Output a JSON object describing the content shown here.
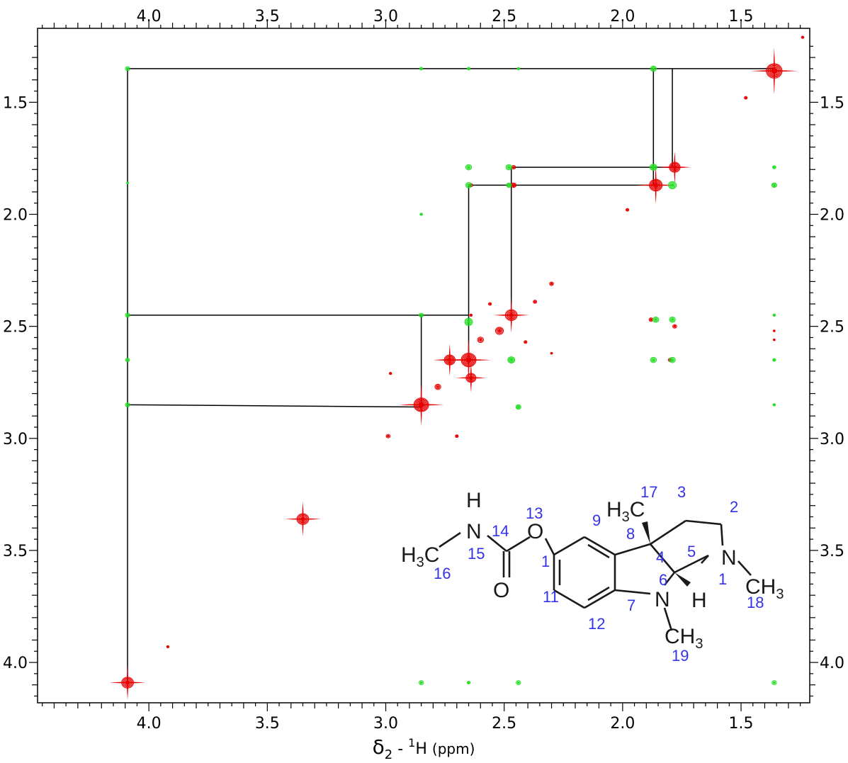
{
  "chart_data": {
    "type": "scatter",
    "title": "",
    "xlabel": "δ2 - 1H (ppm)",
    "xlabel_parts": {
      "delta": "δ",
      "sub": "2",
      "dash": " - ",
      "sup": "1",
      "nucleus": "H",
      "unit": "(ppm)"
    },
    "ylabel": "",
    "xlim": [
      4.47,
      1.21
    ],
    "ylim": [
      1.17,
      4.18
    ],
    "x_reversed": true,
    "y_reversed": true,
    "x_ticks": [
      4.0,
      3.5,
      3.0,
      2.5,
      2.0,
      1.5
    ],
    "x_tick_labels": [
      "4.0",
      "3.5",
      "3.0",
      "2.5",
      "2.0",
      "1.5"
    ],
    "y_ticks": [
      1.5,
      2.0,
      2.5,
      3.0,
      3.5,
      4.0
    ],
    "y_tick_labels": [
      "1.5",
      "2.0",
      "2.5",
      "3.0",
      "3.5",
      "4.0"
    ],
    "grid": false,
    "colors": {
      "positive": "#e60000",
      "negative": "#22dd22",
      "line": "#000000",
      "atom_number": "#3333e6"
    },
    "series": [
      {
        "color": "red",
        "points": [
          {
            "x": 1.36,
            "y": 1.36,
            "s": 3.2
          },
          {
            "x": 1.78,
            "y": 1.79,
            "s": 2.2
          },
          {
            "x": 1.86,
            "y": 1.87,
            "s": 2.6
          },
          {
            "x": 2.47,
            "y": 2.45,
            "s": 2.4
          },
          {
            "x": 2.52,
            "y": 2.52,
            "s": 1.6
          },
          {
            "x": 2.65,
            "y": 2.65,
            "s": 3.0
          },
          {
            "x": 2.73,
            "y": 2.65,
            "s": 2.2
          },
          {
            "x": 2.64,
            "y": 2.73,
            "s": 2.0
          },
          {
            "x": 2.78,
            "y": 2.77,
            "s": 1.2
          },
          {
            "x": 2.6,
            "y": 2.56,
            "s": 1.2
          },
          {
            "x": 2.85,
            "y": 2.85,
            "s": 3.0
          },
          {
            "x": 3.35,
            "y": 3.36,
            "s": 2.4
          },
          {
            "x": 4.09,
            "y": 4.09,
            "s": 2.4
          },
          {
            "x": 2.3,
            "y": 2.31,
            "s": 0.8
          },
          {
            "x": 2.37,
            "y": 2.39,
            "s": 0.7
          },
          {
            "x": 1.98,
            "y": 1.98,
            "s": 0.6
          },
          {
            "x": 1.48,
            "y": 1.48,
            "s": 0.6
          },
          {
            "x": 1.24,
            "y": 1.21,
            "s": 0.5
          },
          {
            "x": 2.99,
            "y": 2.99,
            "s": 0.8
          },
          {
            "x": 2.7,
            "y": 2.99,
            "s": 0.6
          },
          {
            "x": 2.98,
            "y": 2.71,
            "s": 0.5
          },
          {
            "x": 3.92,
            "y": 3.93,
            "s": 0.5
          },
          {
            "x": 2.3,
            "y": 2.62,
            "s": 0.4
          },
          {
            "x": 2.56,
            "y": 2.4,
            "s": 0.6
          },
          {
            "x": 2.41,
            "y": 2.57,
            "s": 0.6
          },
          {
            "x": 2.64,
            "y": 2.45,
            "s": 0.5
          },
          {
            "x": 2.46,
            "y": 1.87,
            "s": 1.0
          },
          {
            "x": 2.46,
            "y": 1.79,
            "s": 0.8
          },
          {
            "x": 2.64,
            "y": 1.87,
            "s": 0.7
          },
          {
            "x": 1.88,
            "y": 2.47,
            "s": 0.8
          },
          {
            "x": 1.78,
            "y": 2.5,
            "s": 0.8
          },
          {
            "x": 1.8,
            "y": 2.65,
            "s": 0.7
          },
          {
            "x": 1.36,
            "y": 2.52,
            "s": 0.4
          },
          {
            "x": 1.36,
            "y": 2.56,
            "s": 0.4
          }
        ]
      },
      {
        "color": "green",
        "points": [
          {
            "x": 4.09,
            "y": 1.35,
            "s": 0.9
          },
          {
            "x": 4.09,
            "y": 2.45,
            "s": 0.9
          },
          {
            "x": 4.09,
            "y": 2.65,
            "s": 0.8
          },
          {
            "x": 4.09,
            "y": 2.85,
            "s": 0.9
          },
          {
            "x": 2.85,
            "y": 1.35,
            "s": 0.6
          },
          {
            "x": 2.85,
            "y": 2.45,
            "s": 0.9
          },
          {
            "x": 2.85,
            "y": 4.09,
            "s": 0.9
          },
          {
            "x": 2.85,
            "y": 2.0,
            "s": 0.5
          },
          {
            "x": 2.65,
            "y": 1.35,
            "s": 0.6
          },
          {
            "x": 2.65,
            "y": 1.79,
            "s": 1.2
          },
          {
            "x": 2.65,
            "y": 1.87,
            "s": 1.2
          },
          {
            "x": 2.65,
            "y": 2.48,
            "s": 1.6
          },
          {
            "x": 2.65,
            "y": 4.09,
            "s": 0.6
          },
          {
            "x": 2.48,
            "y": 1.79,
            "s": 1.2
          },
          {
            "x": 2.48,
            "y": 1.87,
            "s": 1.0
          },
          {
            "x": 2.47,
            "y": 2.65,
            "s": 1.4
          },
          {
            "x": 2.44,
            "y": 1.35,
            "s": 0.5
          },
          {
            "x": 2.44,
            "y": 2.86,
            "s": 1.0
          },
          {
            "x": 2.44,
            "y": 4.09,
            "s": 0.9
          },
          {
            "x": 1.87,
            "y": 1.35,
            "s": 1.2
          },
          {
            "x": 1.87,
            "y": 1.79,
            "s": 1.4
          },
          {
            "x": 1.79,
            "y": 1.87,
            "s": 1.6
          },
          {
            "x": 1.86,
            "y": 2.47,
            "s": 1.2
          },
          {
            "x": 1.79,
            "y": 2.47,
            "s": 1.2
          },
          {
            "x": 1.87,
            "y": 2.65,
            "s": 1.2
          },
          {
            "x": 1.79,
            "y": 2.65,
            "s": 1.2
          },
          {
            "x": 1.36,
            "y": 1.79,
            "s": 0.7
          },
          {
            "x": 1.36,
            "y": 1.87,
            "s": 1.0
          },
          {
            "x": 1.36,
            "y": 2.45,
            "s": 0.5
          },
          {
            "x": 1.36,
            "y": 2.65,
            "s": 0.6
          },
          {
            "x": 1.36,
            "y": 2.85,
            "s": 0.5
          },
          {
            "x": 1.36,
            "y": 4.09,
            "s": 0.9
          },
          {
            "x": 4.09,
            "y": 1.86,
            "s": 0.4
          }
        ]
      }
    ],
    "correlation_lines": [
      [
        [
          4.09,
          1.35
        ],
        [
          1.36,
          1.35
        ]
      ],
      [
        [
          4.09,
          1.35
        ],
        [
          4.09,
          4.09
        ]
      ],
      [
        [
          4.09,
          2.45
        ],
        [
          2.65,
          2.45
        ]
      ],
      [
        [
          4.09,
          2.85
        ],
        [
          2.85,
          2.86
        ]
      ],
      [
        [
          2.85,
          2.45
        ],
        [
          2.85,
          2.86
        ]
      ],
      [
        [
          2.65,
          2.45
        ],
        [
          2.65,
          2.66
        ]
      ],
      [
        [
          2.65,
          1.87
        ],
        [
          2.65,
          2.45
        ]
      ],
      [
        [
          2.65,
          1.87
        ],
        [
          1.87,
          1.87
        ]
      ],
      [
        [
          2.47,
          1.79
        ],
        [
          1.79,
          1.79
        ]
      ],
      [
        [
          2.47,
          1.79
        ],
        [
          2.47,
          2.46
        ]
      ],
      [
        [
          1.87,
          1.35
        ],
        [
          1.87,
          1.87
        ]
      ],
      [
        [
          1.79,
          1.35
        ],
        [
          1.79,
          1.79
        ]
      ]
    ]
  },
  "molecule": {
    "atoms": {
      "h_top": "H",
      "n_amide": "N",
      "o_ether": "O",
      "h3c_left": "H",
      "h3c_left_sub": "3",
      "h3c_left_c": "C",
      "o_carbonyl": "O",
      "h3c_top": "H",
      "h3c_top_sub": "3",
      "h3c_top_c": "C",
      "n_pyr": "N",
      "ch3_right": "CH",
      "ch3_right_sub": "3",
      "n_ind": "N",
      "h_c5": "H",
      "ch3_bottom": "CH",
      "ch3_bottom_sub": "3"
    },
    "numbers": [
      "17",
      "3",
      "2",
      "13",
      "9",
      "14",
      "8",
      "4",
      "5",
      "15",
      "1",
      "16",
      "6",
      "1",
      "18",
      "11",
      "7",
      "12",
      "19"
    ]
  }
}
